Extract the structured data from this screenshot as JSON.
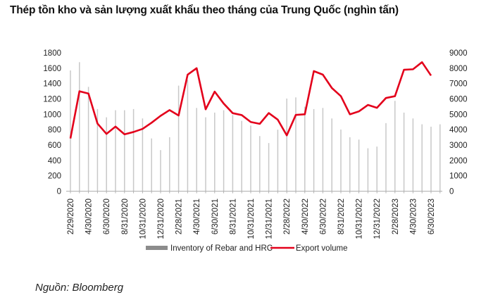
{
  "chart_data": {
    "type": "bar+line",
    "title": "Thép tồn kho và sản lượng xuất khẩu theo tháng của Trung Quốc (nghìn tấn)",
    "source": "Nguồn: Bloomberg",
    "months": [
      "2/29/2020",
      "3/31/2020",
      "4/30/2020",
      "5/31/2020",
      "6/30/2020",
      "7/31/2020",
      "8/31/2020",
      "9/30/2020",
      "10/31/2020",
      "11/30/2020",
      "12/31/2020",
      "1/31/2021",
      "2/28/2021",
      "3/31/2021",
      "4/30/2021",
      "5/31/2021",
      "6/30/2021",
      "7/31/2021",
      "8/31/2021",
      "9/30/2021",
      "10/31/2021",
      "11/30/2021",
      "12/31/2021",
      "1/31/2022",
      "2/28/2022",
      "3/31/2022",
      "4/30/2022",
      "5/31/2022",
      "6/30/2022",
      "7/31/2022",
      "8/31/2022",
      "9/30/2022",
      "10/31/2022",
      "11/30/2022",
      "12/31/2022",
      "1/31/2023",
      "2/28/2023",
      "3/31/2023",
      "4/30/2023",
      "5/31/2023",
      "6/30/2023",
      "7/31/2023"
    ],
    "tick_labels": [
      "2/29/2020",
      "4/30/2020",
      "6/30/2020",
      "8/31/2020",
      "10/31/2020",
      "12/31/2020",
      "2/28/2021",
      "4/30/2021",
      "6/30/2021",
      "8/31/2021",
      "10/31/2021",
      "12/31/2021",
      "2/28/2022",
      "4/30/2022",
      "6/30/2022",
      "8/31/2022",
      "10/31/2022",
      "12/31/2022",
      "2/28/2023",
      "4/30/2023",
      "6/30/2023"
    ],
    "left_axis": {
      "ylim": [
        0,
        1800
      ],
      "ticks": [
        "0",
        "200",
        "400",
        "600",
        "800",
        "1000",
        "1200",
        "1400",
        "1600",
        "1800"
      ]
    },
    "right_axis": {
      "ylim": [
        0,
        9000
      ],
      "ticks": [
        "0",
        "1000",
        "2000",
        "3000",
        "4000",
        "5000",
        "6000",
        "7000",
        "8000",
        "9000"
      ]
    },
    "series": [
      {
        "name": "Inventory of Rebar and HRC",
        "type": "bar",
        "axis": "left",
        "color": "#c8c8c8",
        "legend_color": "#8c8c8c",
        "values": [
          1571,
          1678,
          1357,
          1068,
          961,
          1053,
          1053,
          1068,
          946,
          686,
          534,
          702,
          1373,
          1450,
          1083,
          961,
          1022,
          1053,
          991,
          915,
          854,
          717,
          626,
          800,
          1205,
          1220,
          1100,
          1068,
          1083,
          946,
          802,
          702,
          671,
          558,
          580,
          885,
          1175,
          1022,
          946,
          870,
          839,
          870
        ]
      },
      {
        "name": "Export volume",
        "type": "line",
        "axis": "right",
        "color": "#e3001b",
        "values": [
          3430,
          6500,
          6350,
          4400,
          3725,
          4200,
          3700,
          3850,
          4050,
          4450,
          4900,
          5275,
          4925,
          7575,
          8000,
          5325,
          6475,
          5700,
          5075,
          4950,
          4500,
          4380,
          5080,
          4650,
          3630,
          4960,
          5000,
          7810,
          7580,
          6710,
          6180,
          5000,
          5190,
          5610,
          5420,
          6060,
          6180,
          7900,
          7930,
          8390,
          7520,
          null
        ]
      }
    ],
    "legend": {
      "position": "bottom",
      "items": [
        "Inventory of Rebar and HRC",
        "Export volume"
      ]
    }
  }
}
